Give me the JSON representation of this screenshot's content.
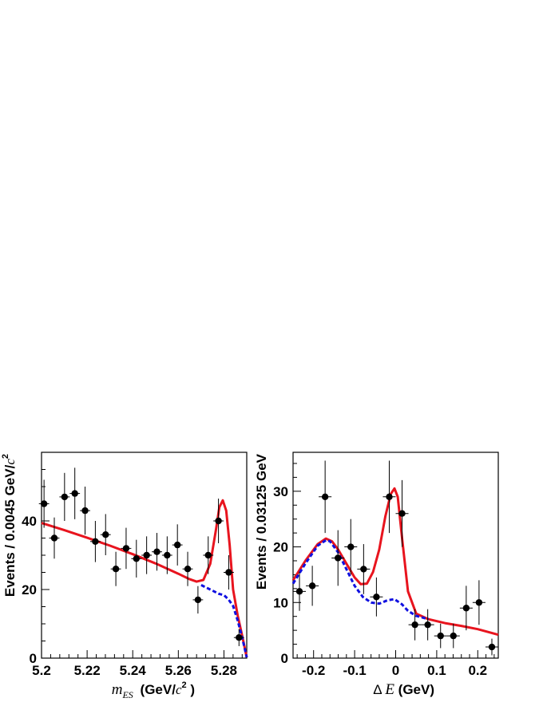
{
  "chart_data": [
    {
      "type": "scatter",
      "title": "",
      "xlabel": "",
      "ylabel": "",
      "xlabel_parts": {
        "var": "m",
        "sub": "ES",
        "rest": " (GeV/",
        "c": "c",
        "sup": "2",
        "close": " )"
      },
      "ylabel_parts": {
        "text": "Events / 0.0045 GeV/",
        "c": "c",
        "sup": "2"
      },
      "xlim": [
        5.2,
        5.29
      ],
      "ylim": [
        0,
        60
      ],
      "x_ticks": [
        5.2,
        5.22,
        5.24,
        5.26,
        5.28
      ],
      "x_tick_labels": [
        "5.2",
        "5.22",
        "5.24",
        "5.26",
        "5.28"
      ],
      "y_ticks": [
        0,
        20,
        40
      ],
      "y_tick_labels": [
        "0",
        "20",
        "40"
      ],
      "x_bin_halfwidth": 0.00225,
      "points": {
        "x": [
          5.2011,
          5.2056,
          5.2101,
          5.2146,
          5.2191,
          5.2236,
          5.2281,
          5.2326,
          5.2371,
          5.2416,
          5.2461,
          5.2506,
          5.2551,
          5.2596,
          5.2641,
          5.2686,
          5.2731,
          5.2776,
          5.2821,
          5.2866
        ],
        "y": [
          45,
          35,
          47,
          48,
          43,
          34,
          36,
          26,
          32,
          29,
          30,
          31,
          30,
          33,
          26,
          17,
          30,
          40,
          25,
          6
        ],
        "yerr": [
          7,
          6,
          7,
          7.5,
          7,
          6,
          6,
          5,
          6,
          5.5,
          5.5,
          5.5,
          5.5,
          6,
          5,
          4,
          5.5,
          6.5,
          5,
          2.5
        ]
      },
      "series": [
        {
          "name": "",
          "style": "solid",
          "color": "#e8141e",
          "x": [
            5.2,
            5.21,
            5.22,
            5.23,
            5.24,
            5.25,
            5.26,
            5.265,
            5.268,
            5.271,
            5.274,
            5.2765,
            5.278,
            5.2795,
            5.281,
            5.2825,
            5.284,
            5.286,
            5.288,
            5.29
          ],
          "y": [
            39.4,
            37.3,
            35.1,
            32.8,
            30.3,
            27.6,
            24.6,
            23.0,
            22.3,
            22.8,
            27.5,
            37.5,
            44.0,
            46.0,
            43.0,
            33.0,
            20.0,
            12.5,
            6.5,
            0.2
          ]
        },
        {
          "name": "",
          "style": "dashed",
          "color": "#1010e0",
          "x": [
            5.27,
            5.274,
            5.278,
            5.28,
            5.282,
            5.284,
            5.286,
            5.288,
            5.29
          ],
          "y": [
            21.3,
            20.0,
            18.7,
            18.4,
            17.1,
            15.2,
            11.0,
            6.0,
            0.2
          ]
        }
      ]
    },
    {
      "type": "scatter",
      "title": "",
      "xlabel": "",
      "ylabel": "Events / 0.03125 GeV",
      "xlabel_parts": {
        "delta": "Δ",
        "var": "E",
        "rest": " (GeV)"
      },
      "xlim": [
        -0.25,
        0.25
      ],
      "ylim": [
        0,
        37
      ],
      "x_ticks": [
        -0.2,
        -0.1,
        0,
        0.1,
        0.2
      ],
      "x_tick_labels": [
        "-0.2",
        "-0.1",
        "0",
        "0.1",
        "0.2"
      ],
      "y_ticks": [
        0,
        10,
        20,
        30
      ],
      "y_tick_labels": [
        "0",
        "10",
        "20",
        "30"
      ],
      "x_bin_halfwidth": 0.0156,
      "points": {
        "x": [
          -0.2344,
          -0.2031,
          -0.1719,
          -0.1406,
          -0.1094,
          -0.0781,
          -0.0469,
          -0.0156,
          0.0156,
          0.0469,
          0.0781,
          0.1094,
          0.1406,
          0.1719,
          0.2031,
          0.2344
        ],
        "y": [
          12,
          13,
          29,
          18,
          20,
          16,
          11,
          29,
          26,
          6,
          6,
          4,
          4,
          9,
          10,
          2
        ],
        "yerr": [
          3.5,
          3.6,
          6.5,
          5,
          5,
          4.5,
          3.5,
          6.5,
          6,
          2.8,
          2.8,
          2.2,
          2.2,
          4,
          4,
          1.5
        ]
      },
      "series": [
        {
          "name": "",
          "style": "solid",
          "color": "#e8141e",
          "x": [
            -0.25,
            -0.22,
            -0.19,
            -0.17,
            -0.155,
            -0.14,
            -0.12,
            -0.1,
            -0.085,
            -0.07,
            -0.055,
            -0.04,
            -0.025,
            -0.012,
            -0.003,
            0.005,
            0.015,
            0.03,
            0.05,
            0.08,
            0.12,
            0.16,
            0.2,
            0.25
          ],
          "y": [
            14,
            17.5,
            20.5,
            21.5,
            21,
            19.5,
            17,
            14.5,
            13.3,
            13.4,
            15.5,
            19.5,
            25.5,
            29.5,
            30.5,
            29,
            22,
            12,
            8,
            7,
            6.3,
            5.8,
            5.2,
            4.2
          ]
        },
        {
          "name": "",
          "style": "dashed",
          "color": "#1010e0",
          "x": [
            -0.25,
            -0.22,
            -0.19,
            -0.17,
            -0.16,
            -0.14,
            -0.12,
            -0.1,
            -0.08,
            -0.06,
            -0.04,
            -0.02,
            -0.003,
            0.015,
            0.03,
            0.05,
            0.08
          ],
          "y": [
            13.4,
            17,
            20.2,
            21.2,
            21,
            19,
            16,
            13,
            11,
            10,
            9.8,
            10.4,
            10.6,
            9.7,
            8.5,
            7.6,
            7
          ]
        }
      ]
    }
  ]
}
